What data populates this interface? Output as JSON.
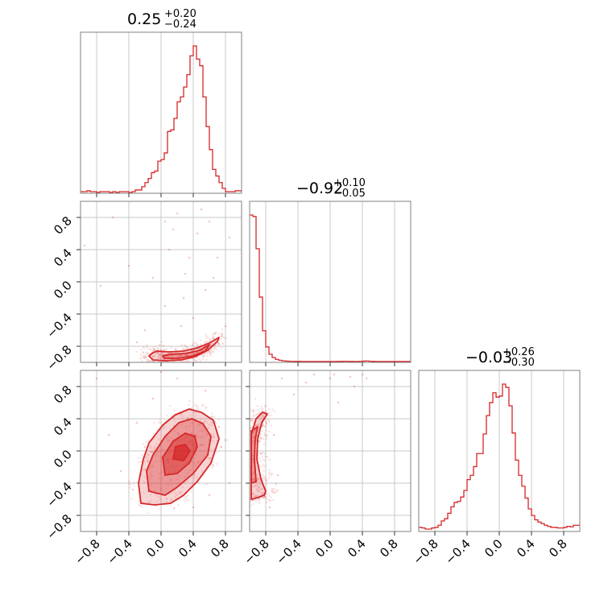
{
  "chart_data": {
    "type": "corner",
    "color": "#d62728",
    "axis_range": [
      -1.0,
      1.0
    ],
    "tick_values": [
      -0.8,
      -0.4,
      0.0,
      0.4,
      0.8
    ],
    "tick_labels": [
      "−0.8",
      "−0.4",
      "0.0",
      "0.4",
      "0.8"
    ],
    "grid": true,
    "parameters": [
      {
        "title": {
          "median": "0.25",
          "upper": "+0.20",
          "lower": "−0.24"
        },
        "histogram": {
          "bin_width": 0.04,
          "centers": [
            -0.98,
            -0.94,
            -0.9,
            -0.86,
            -0.82,
            -0.78,
            -0.74,
            -0.7,
            -0.66,
            -0.62,
            -0.58,
            -0.54,
            -0.5,
            -0.46,
            -0.42,
            -0.38,
            -0.34,
            -0.3,
            -0.26,
            -0.22,
            -0.18,
            -0.14,
            -0.1,
            -0.06,
            -0.02,
            0.02,
            0.06,
            0.1,
            0.14,
            0.18,
            0.22,
            0.26,
            0.3,
            0.34,
            0.38,
            0.42,
            0.46,
            0.5,
            0.54,
            0.58,
            0.62,
            0.66,
            0.7,
            0.74,
            0.78,
            0.82,
            0.86,
            0.9,
            0.94,
            0.98
          ],
          "counts": [
            1,
            1,
            2,
            1,
            1,
            0,
            1,
            1,
            1,
            0,
            1,
            0,
            1,
            1,
            1,
            0,
            1,
            3,
            3,
            7,
            12,
            17,
            24,
            26,
            38,
            40,
            48,
            74,
            76,
            90,
            110,
            116,
            128,
            143,
            166,
            178,
            162,
            154,
            116,
            80,
            52,
            28,
            20,
            12,
            5,
            1,
            1,
            1,
            2,
            2
          ]
        }
      },
      {
        "title": {
          "median": "−0.92",
          "upper": "+0.10",
          "lower": "−0.05"
        },
        "histogram": {
          "bin_width": 0.04,
          "centers": [
            -0.98,
            -0.94,
            -0.9,
            -0.86,
            -0.82,
            -0.78,
            -0.74,
            -0.7,
            -0.66,
            -0.62,
            -0.58,
            -0.54,
            -0.5,
            -0.46,
            -0.42,
            -0.38,
            -0.34,
            -0.3,
            -0.26,
            -0.22,
            -0.18,
            -0.14,
            -0.1,
            -0.06,
            -0.02,
            0.02,
            0.06,
            0.1,
            0.14,
            0.18,
            0.22,
            0.26,
            0.3,
            0.34,
            0.38,
            0.42,
            0.46,
            0.5,
            0.54,
            0.58,
            0.62,
            0.66,
            0.7,
            0.74,
            0.78,
            0.82,
            0.86,
            0.9,
            0.94,
            0.98
          ],
          "counts": [
            2000,
            1980,
            1540,
            880,
            420,
            200,
            100,
            55,
            30,
            18,
            10,
            6,
            4,
            3,
            2,
            2,
            1,
            1,
            1,
            1,
            1,
            1,
            1,
            1,
            1,
            1,
            1,
            2,
            2,
            4,
            3,
            2,
            1,
            1,
            3,
            6,
            8,
            4,
            2,
            1,
            1,
            1,
            1,
            1,
            1,
            1,
            1,
            1,
            1,
            1
          ]
        }
      },
      {
        "title": {
          "median": "−0.03",
          "upper": "+0.26",
          "lower": "−0.30"
        },
        "histogram": {
          "bin_width": 0.04,
          "centers": [
            -0.98,
            -0.94,
            -0.9,
            -0.86,
            -0.82,
            -0.78,
            -0.74,
            -0.7,
            -0.66,
            -0.62,
            -0.58,
            -0.54,
            -0.5,
            -0.46,
            -0.42,
            -0.38,
            -0.34,
            -0.3,
            -0.26,
            -0.22,
            -0.18,
            -0.14,
            -0.1,
            -0.06,
            -0.02,
            0.02,
            0.06,
            0.1,
            0.14,
            0.18,
            0.22,
            0.26,
            0.3,
            0.34,
            0.38,
            0.42,
            0.46,
            0.5,
            0.54,
            0.58,
            0.62,
            0.66,
            0.7,
            0.74,
            0.78,
            0.82,
            0.86,
            0.9,
            0.94,
            0.98
          ],
          "counts": [
            6,
            5,
            3,
            3,
            5,
            6,
            10,
            18,
            22,
            32,
            44,
            52,
            54,
            62,
            74,
            94,
            102,
            118,
            142,
            142,
            178,
            212,
            236,
            254,
            246,
            248,
            270,
            264,
            230,
            180,
            130,
            102,
            82,
            60,
            40,
            28,
            20,
            16,
            13,
            10,
            8,
            6,
            6,
            5,
            5,
            6,
            8,
            7,
            10,
            10
          ]
        }
      }
    ],
    "scatter_panels": [
      {
        "row": 1,
        "col": 0,
        "contours": [
          {
            "level": "outer",
            "points": [
              [
                -0.05,
                -0.86
              ],
              [
                0.1,
                -0.87
              ],
              [
                0.28,
                -0.86
              ],
              [
                0.45,
                -0.82
              ],
              [
                0.6,
                -0.76
              ],
              [
                0.72,
                -0.69
              ],
              [
                0.7,
                -0.74
              ],
              [
                0.58,
                -0.85
              ],
              [
                0.42,
                -0.93
              ],
              [
                0.25,
                -0.97
              ],
              [
                0.05,
                -0.98
              ],
              [
                -0.1,
                -0.97
              ],
              [
                -0.15,
                -0.92
              ],
              [
                -0.1,
                -0.88
              ]
            ]
          },
          {
            "level": "inner",
            "points": [
              [
                0.1,
                -0.9
              ],
              [
                0.3,
                -0.89
              ],
              [
                0.48,
                -0.85
              ],
              [
                0.6,
                -0.78
              ],
              [
                0.55,
                -0.86
              ],
              [
                0.4,
                -0.92
              ],
              [
                0.22,
                -0.95
              ],
              [
                0.05,
                -0.95
              ],
              [
                0.02,
                -0.92
              ]
            ]
          }
        ],
        "outliers": [
          [
            -0.95,
            0.45
          ],
          [
            -0.6,
            0.8
          ],
          [
            -0.4,
            0.2
          ],
          [
            0.1,
            0.4
          ],
          [
            0.2,
            0.85
          ],
          [
            0.3,
            0.1
          ],
          [
            0.45,
            0.6
          ],
          [
            0.55,
            -0.1
          ],
          [
            0.6,
            0.75
          ],
          [
            0.7,
            0.3
          ],
          [
            -0.2,
            -0.6
          ],
          [
            0.25,
            -0.55
          ],
          [
            0.05,
            -0.3
          ],
          [
            0.4,
            -0.45
          ],
          [
            0.8,
            -0.55
          ],
          [
            -0.3,
            -0.75
          ],
          [
            0.15,
            0.65
          ],
          [
            -0.1,
            0.05
          ],
          [
            0.35,
            0.3
          ],
          [
            0.65,
            0.05
          ],
          [
            0.5,
            0.9
          ],
          [
            -0.75,
            -0.05
          ],
          [
            0.85,
            0.55
          ],
          [
            0.05,
            0.75
          ],
          [
            0.28,
            -0.2
          ]
        ]
      },
      {
        "row": 2,
        "col": 0,
        "contours": [
          {
            "level": "outer",
            "points": [
              [
                -0.25,
                -0.65
              ],
              [
                -0.08,
                -0.67
              ],
              [
                0.12,
                -0.65
              ],
              [
                0.28,
                -0.55
              ],
              [
                0.45,
                -0.38
              ],
              [
                0.62,
                -0.15
              ],
              [
                0.72,
                0.15
              ],
              [
                0.65,
                0.38
              ],
              [
                0.5,
                0.48
              ],
              [
                0.35,
                0.52
              ],
              [
                0.18,
                0.45
              ],
              [
                0.02,
                0.32
              ],
              [
                -0.15,
                0.1
              ],
              [
                -0.22,
                -0.1
              ],
              [
                -0.28,
                -0.4
              ]
            ]
          },
          {
            "level": "middle",
            "points": [
              [
                -0.15,
                -0.5
              ],
              [
                0.05,
                -0.55
              ],
              [
                0.2,
                -0.45
              ],
              [
                0.4,
                -0.28
              ],
              [
                0.58,
                -0.05
              ],
              [
                0.62,
                0.18
              ],
              [
                0.52,
                0.34
              ],
              [
                0.38,
                0.4
              ],
              [
                0.22,
                0.35
              ],
              [
                0.05,
                0.18
              ],
              [
                -0.1,
                -0.05
              ],
              [
                -0.18,
                -0.25
              ]
            ]
          },
          {
            "level": "inner",
            "points": [
              [
                0.05,
                -0.3
              ],
              [
                0.2,
                -0.28
              ],
              [
                0.35,
                -0.15
              ],
              [
                0.45,
                0.05
              ],
              [
                0.42,
                0.18
              ],
              [
                0.3,
                0.22
              ],
              [
                0.15,
                0.12
              ],
              [
                0.02,
                -0.08
              ]
            ]
          },
          {
            "level": "core",
            "points": [
              [
                0.15,
                -0.1
              ],
              [
                0.28,
                -0.12
              ],
              [
                0.36,
                0.0
              ],
              [
                0.3,
                0.08
              ],
              [
                0.18,
                0.05
              ]
            ]
          }
        ],
        "outliers": [
          [
            0.0,
            0.98
          ],
          [
            0.2,
            0.9
          ],
          [
            -0.35,
            -0.48
          ],
          [
            0.72,
            0.3
          ],
          [
            -0.2,
            0.05
          ],
          [
            -0.3,
            0.35
          ],
          [
            0.75,
            0.05
          ],
          [
            -0.8,
            0.9
          ],
          [
            0.55,
            0.75
          ],
          [
            -0.5,
            -0.25
          ],
          [
            0.85,
            -0.4
          ],
          [
            0.4,
            -0.7
          ],
          [
            -0.1,
            0.65
          ],
          [
            0.6,
            -0.55
          ],
          [
            -0.65,
            0.2
          ]
        ]
      },
      {
        "row": 2,
        "col": 1,
        "contours": [
          {
            "level": "outer",
            "points": [
              [
                -0.98,
                -0.6
              ],
              [
                -0.9,
                -0.58
              ],
              [
                -0.82,
                -0.55
              ],
              [
                -0.8,
                -0.5
              ],
              [
                -0.86,
                -0.35
              ],
              [
                -0.91,
                -0.1
              ],
              [
                -0.9,
                0.15
              ],
              [
                -0.85,
                0.35
              ],
              [
                -0.78,
                0.46
              ],
              [
                -0.84,
                0.48
              ],
              [
                -0.92,
                0.4
              ],
              [
                -0.98,
                0.2
              ]
            ]
          },
          {
            "level": "inner",
            "points": [
              [
                -0.98,
                -0.4
              ],
              [
                -0.92,
                -0.38
              ],
              [
                -0.94,
                -0.1
              ],
              [
                -0.93,
                0.15
              ],
              [
                -0.9,
                0.3
              ],
              [
                -0.98,
                0.25
              ]
            ]
          }
        ],
        "outliers": [
          [
            -0.6,
            0.9
          ],
          [
            -0.2,
            0.95
          ],
          [
            0.05,
            0.95
          ],
          [
            0.25,
            0.92
          ],
          [
            0.45,
            0.9
          ],
          [
            0.3,
            0.8
          ],
          [
            -0.45,
            0.7
          ],
          [
            0.1,
            0.6
          ],
          [
            -0.7,
            0.2
          ],
          [
            -0.65,
            -0.3
          ],
          [
            -0.75,
            -0.7
          ],
          [
            0.0,
            0.9
          ],
          [
            0.4,
            0.95
          ],
          [
            -0.3,
            0.85
          ]
        ]
      }
    ]
  }
}
